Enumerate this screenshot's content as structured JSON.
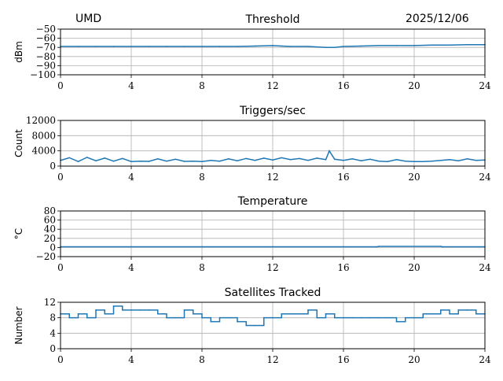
{
  "header": {
    "site": "UMD",
    "date": "2025/12/06"
  },
  "line_color": "#1f77b4",
  "chart_data": [
    {
      "type": "line",
      "title": "Threshold",
      "xlabel": "",
      "ylabel": "dBm",
      "xlim": [
        0,
        24
      ],
      "ylim": [
        -100,
        -50
      ],
      "xticks": [
        "0",
        "4",
        "8",
        "12",
        "16",
        "20",
        "24"
      ],
      "yticks": [
        "−50",
        "−60",
        "−70",
        "−80",
        "−90",
        "−100"
      ],
      "ytick_values": [
        -50,
        -60,
        -70,
        -80,
        -90,
        -100
      ],
      "grid": true,
      "x": [
        0,
        1,
        2,
        3,
        4,
        5,
        6,
        7,
        8,
        9,
        10,
        11,
        12,
        12.5,
        13,
        14,
        15,
        15.5,
        16,
        17,
        18,
        19,
        20,
        21,
        22,
        23,
        24
      ],
      "values": [
        -69,
        -69,
        -69,
        -69,
        -69,
        -69,
        -69,
        -69,
        -69,
        -69,
        -69,
        -68.5,
        -68,
        -68.5,
        -69,
        -69,
        -70,
        -70,
        -69,
        -68.5,
        -68,
        -68,
        -68,
        -67.5,
        -67.5,
        -67,
        -67
      ]
    },
    {
      "type": "line",
      "title": "Triggers/sec",
      "xlabel": "",
      "ylabel": "Count",
      "xlim": [
        0,
        24
      ],
      "ylim": [
        0,
        12000
      ],
      "xticks": [
        "0",
        "4",
        "8",
        "12",
        "16",
        "20",
        "24"
      ],
      "yticks": [
        "12000",
        "8000",
        "4000",
        "0"
      ],
      "ytick_values": [
        12000,
        8000,
        4000,
        0
      ],
      "grid": true,
      "x": [
        0,
        0.5,
        1,
        1.5,
        2,
        2.5,
        3,
        3.5,
        4,
        4.5,
        5,
        5.5,
        6,
        6.5,
        7,
        7.5,
        8,
        8.5,
        9,
        9.5,
        10,
        10.5,
        11,
        11.5,
        12,
        12.5,
        13,
        13.5,
        14,
        14.5,
        15,
        15.2,
        15.5,
        16,
        16.5,
        17,
        17.5,
        18,
        18.5,
        19,
        19.5,
        20,
        20.5,
        21,
        21.5,
        22,
        22.5,
        23,
        23.5,
        24
      ],
      "values": [
        1500,
        2200,
        1200,
        2300,
        1400,
        2100,
        1300,
        2000,
        1200,
        1300,
        1250,
        1900,
        1300,
        1800,
        1250,
        1300,
        1200,
        1500,
        1300,
        1900,
        1400,
        2000,
        1500,
        2100,
        1600,
        2200,
        1700,
        2000,
        1500,
        2100,
        1700,
        4000,
        1800,
        1500,
        1900,
        1400,
        1800,
        1300,
        1200,
        1700,
        1300,
        1200,
        1200,
        1300,
        1500,
        1700,
        1400,
        1900,
        1500,
        1600
      ]
    },
    {
      "type": "line",
      "title": "Temperature",
      "xlabel": "",
      "ylabel": "°C",
      "xlim": [
        0,
        24
      ],
      "ylim": [
        -20,
        80
      ],
      "xticks": [
        "0",
        "4",
        "8",
        "12",
        "16",
        "20",
        "24"
      ],
      "yticks": [
        "80",
        "60",
        "40",
        "20",
        "0",
        "−20"
      ],
      "ytick_values": [
        80,
        60,
        40,
        20,
        0,
        -20
      ],
      "grid": true,
      "x": [
        0,
        4,
        8,
        12,
        16,
        17.9,
        18,
        21.5,
        21.6,
        24
      ],
      "values": [
        1.5,
        1.5,
        1.5,
        1.5,
        1.5,
        1.5,
        2.5,
        2.5,
        1.5,
        1.5
      ]
    },
    {
      "type": "line",
      "title": "Satellites Tracked",
      "xlabel": "",
      "ylabel": "Number",
      "xlim": [
        0,
        24
      ],
      "ylim": [
        0,
        12
      ],
      "xticks": [
        "0",
        "4",
        "8",
        "12",
        "16",
        "20",
        "24"
      ],
      "yticks": [
        "12",
        "8",
        "4",
        "0"
      ],
      "ytick_values": [
        12,
        8,
        4,
        0
      ],
      "grid": true,
      "step": true,
      "x": [
        0,
        0.5,
        1,
        1.5,
        2,
        2.5,
        3,
        3.5,
        4,
        4.5,
        5,
        5.5,
        6,
        6.5,
        7,
        7.5,
        8,
        8.5,
        9,
        9.5,
        10,
        10.5,
        11,
        11.5,
        12,
        12.5,
        13,
        13.5,
        14,
        14.5,
        15,
        15.5,
        16,
        16.5,
        17,
        17.5,
        18,
        18.5,
        19,
        19.5,
        20,
        20.5,
        21,
        21.5,
        22,
        22.5,
        23,
        23.5,
        24
      ],
      "values": [
        9,
        8,
        9,
        8,
        10,
        9,
        11,
        10,
        10,
        10,
        10,
        9,
        8,
        8,
        10,
        9,
        8,
        7,
        8,
        8,
        7,
        6,
        6,
        8,
        8,
        9,
        9,
        9,
        10,
        8,
        9,
        8,
        8,
        8,
        8,
        8,
        8,
        8,
        7,
        8,
        8,
        9,
        9,
        10,
        9,
        10,
        10,
        9,
        9
      ]
    }
  ]
}
